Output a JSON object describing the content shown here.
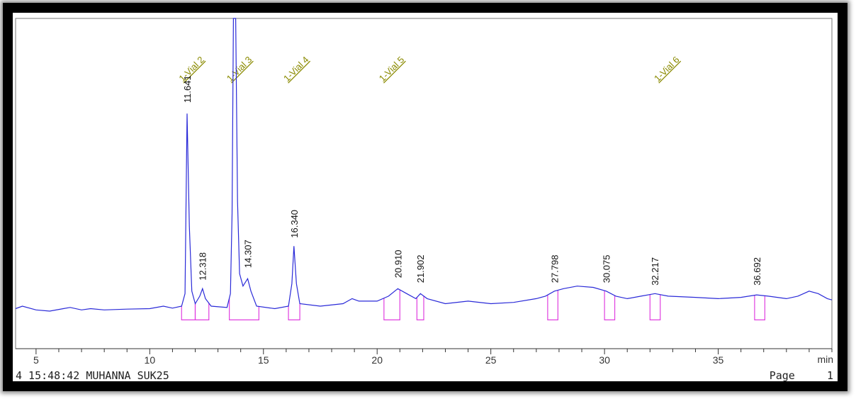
{
  "chart_data": {
    "type": "line",
    "xlabel": "min",
    "xlim": [
      4.1,
      40
    ],
    "ylim": [
      -14,
      118
    ],
    "x_ticks": [
      5,
      10,
      15,
      20,
      25,
      30,
      35
    ],
    "baseline_points": [
      [
        4.1,
        2
      ],
      [
        4.4,
        3
      ],
      [
        5,
        1.5
      ],
      [
        5.6,
        1
      ],
      [
        6.2,
        2
      ],
      [
        6.5,
        2.5
      ],
      [
        7,
        1.5
      ],
      [
        7.4,
        2
      ],
      [
        8,
        1.5
      ],
      [
        9,
        1.8
      ],
      [
        10,
        2
      ],
      [
        10.6,
        3
      ],
      [
        11,
        2.2
      ],
      [
        11.4,
        3
      ],
      [
        11.55,
        8
      ],
      [
        11.64,
        80
      ],
      [
        11.74,
        35
      ],
      [
        11.85,
        9
      ],
      [
        12.0,
        4
      ],
      [
        12.2,
        7
      ],
      [
        12.32,
        10
      ],
      [
        12.45,
        6
      ],
      [
        12.7,
        3
      ],
      [
        13.4,
        2.5
      ],
      [
        13.55,
        8
      ],
      [
        13.62,
        40
      ],
      [
        13.68,
        135
      ],
      [
        13.78,
        135
      ],
      [
        13.86,
        45
      ],
      [
        13.95,
        16
      ],
      [
        14.1,
        11
      ],
      [
        14.307,
        14
      ],
      [
        14.45,
        9
      ],
      [
        14.7,
        3
      ],
      [
        15.5,
        2
      ],
      [
        16.1,
        3
      ],
      [
        16.25,
        12
      ],
      [
        16.34,
        27
      ],
      [
        16.45,
        12
      ],
      [
        16.6,
        4
      ],
      [
        17.5,
        3
      ],
      [
        18.5,
        4
      ],
      [
        18.9,
        6
      ],
      [
        19.2,
        5
      ],
      [
        20,
        5
      ],
      [
        20.5,
        7
      ],
      [
        20.91,
        10
      ],
      [
        21.3,
        8
      ],
      [
        21.7,
        6
      ],
      [
        21.902,
        8
      ],
      [
        22.2,
        6
      ],
      [
        23,
        4
      ],
      [
        24,
        5
      ],
      [
        25,
        4
      ],
      [
        26,
        4.5
      ],
      [
        27,
        6
      ],
      [
        27.4,
        7
      ],
      [
        27.798,
        9
      ],
      [
        28.2,
        10
      ],
      [
        28.8,
        11
      ],
      [
        29.5,
        10.5
      ],
      [
        30.075,
        9
      ],
      [
        30.5,
        7
      ],
      [
        31,
        6
      ],
      [
        31.6,
        7
      ],
      [
        32.217,
        8
      ],
      [
        32.8,
        7
      ],
      [
        34,
        6.5
      ],
      [
        35,
        6
      ],
      [
        36,
        6.5
      ],
      [
        36.692,
        7.5
      ],
      [
        37.2,
        7
      ],
      [
        38,
        6
      ],
      [
        38.5,
        7
      ],
      [
        39,
        9
      ],
      [
        39.4,
        8
      ],
      [
        39.8,
        6
      ],
      [
        40,
        5.5
      ]
    ],
    "peaks": [
      {
        "rt": "11.641",
        "x": 11.641,
        "label_y": 82
      },
      {
        "rt": "12.318",
        "x": 12.318,
        "label_y": 11
      },
      {
        "rt": "14.307",
        "x": 14.307,
        "label_y": 16
      },
      {
        "rt": "16.340",
        "x": 16.34,
        "label_y": 28
      },
      {
        "rt": "20.910",
        "x": 20.91,
        "label_y": 12
      },
      {
        "rt": "21.902",
        "x": 21.902,
        "label_y": 10
      },
      {
        "rt": "27.798",
        "x": 27.798,
        "label_y": 10
      },
      {
        "rt": "30.075",
        "x": 30.075,
        "label_y": 10
      },
      {
        "rt": "32.217",
        "x": 32.217,
        "label_y": 9
      },
      {
        "rt": "36.692",
        "x": 36.692,
        "label_y": 9
      }
    ],
    "integration_boxes": [
      [
        11.4,
        12.0
      ],
      [
        12.0,
        12.6
      ],
      [
        13.5,
        14.8
      ],
      [
        16.1,
        16.6
      ],
      [
        20.3,
        21.0
      ],
      [
        21.75,
        22.05
      ],
      [
        27.5,
        27.95
      ],
      [
        30.0,
        30.45
      ],
      [
        32.0,
        32.45
      ],
      [
        36.6,
        37.05
      ]
    ],
    "annotations": [
      {
        "text": "1-Vial 2",
        "x": 11.7
      },
      {
        "text": "1-Vial 3",
        "x": 13.8
      },
      {
        "text": "1-Vial 4",
        "x": 16.3
      },
      {
        "text": "1-Vial 5",
        "x": 20.5
      },
      {
        "text": "1-Vial 6",
        "x": 32.6
      }
    ],
    "colors": {
      "trace": "#2a2ad8",
      "integration": "#e040e0",
      "annotation": "#8a8a00",
      "axis": "#333333"
    }
  },
  "footer": {
    "left_text": "4 15:48:42 MUHANNA SUK25",
    "page_label": "Page",
    "page_number": "1"
  }
}
